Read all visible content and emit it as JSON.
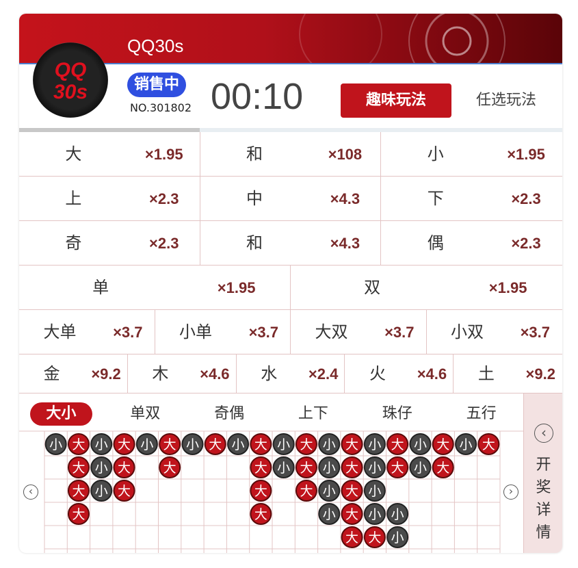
{
  "header": {
    "title": "QQ30s",
    "logo": [
      "QQ",
      "30s"
    ],
    "status": "销售中",
    "issue": "NO.301802",
    "timer": "00:10",
    "buttons": [
      "趣味玩法",
      "任选玩法"
    ]
  },
  "odds": [
    [
      {
        "label": "大",
        "odds": "×1.95"
      },
      {
        "label": "和",
        "odds": "×108"
      },
      {
        "label": "小",
        "odds": "×1.95"
      }
    ],
    [
      {
        "label": "上",
        "odds": "×2.3"
      },
      {
        "label": "中",
        "odds": "×4.3"
      },
      {
        "label": "下",
        "odds": "×2.3"
      }
    ],
    [
      {
        "label": "奇",
        "odds": "×2.3"
      },
      {
        "label": "和",
        "odds": "×4.3"
      },
      {
        "label": "偶",
        "odds": "×2.3"
      }
    ],
    [
      {
        "label": "单",
        "odds": "×1.95"
      },
      {
        "label": "双",
        "odds": "×1.95"
      }
    ],
    [
      {
        "label": "大单",
        "odds": "×3.7"
      },
      {
        "label": "小单",
        "odds": "×3.7"
      },
      {
        "label": "大双",
        "odds": "×3.7"
      },
      {
        "label": "小双",
        "odds": "×3.7"
      }
    ],
    [
      {
        "label": "金",
        "odds": "×9.2"
      },
      {
        "label": "木",
        "odds": "×4.6"
      },
      {
        "label": "水",
        "odds": "×2.4"
      },
      {
        "label": "火",
        "odds": "×4.6"
      },
      {
        "label": "土",
        "odds": "×9.2"
      }
    ]
  ],
  "tabs": [
    "大小",
    "单双",
    "奇偶",
    "上下",
    "珠仔",
    "五行"
  ],
  "active_tab": 0,
  "side_panel": "开奖详情",
  "road": [
    [
      "小",
      "大",
      "小",
      "大",
      "小",
      "大",
      "小",
      "大",
      "小",
      "大",
      "小",
      "大",
      "小",
      "大",
      "小",
      "大",
      "小",
      "大",
      "小",
      "大"
    ],
    [
      null,
      "大",
      "小",
      "大",
      null,
      "大",
      null,
      null,
      null,
      "大",
      "小",
      "大",
      "小",
      "大",
      "小",
      "大",
      "小",
      "大",
      null,
      null
    ],
    [
      null,
      "大",
      "小",
      "大",
      null,
      null,
      null,
      null,
      null,
      "大",
      null,
      "大",
      "小",
      "大",
      "小",
      null,
      null,
      null,
      null,
      null
    ],
    [
      null,
      "大",
      null,
      null,
      null,
      null,
      null,
      null,
      null,
      "大",
      null,
      null,
      "小",
      "大",
      "小",
      "小",
      null,
      null,
      null,
      null
    ],
    [
      null,
      null,
      null,
      null,
      null,
      null,
      null,
      null,
      null,
      null,
      null,
      null,
      null,
      "大",
      "大",
      "小",
      null,
      null,
      null,
      null
    ]
  ]
}
